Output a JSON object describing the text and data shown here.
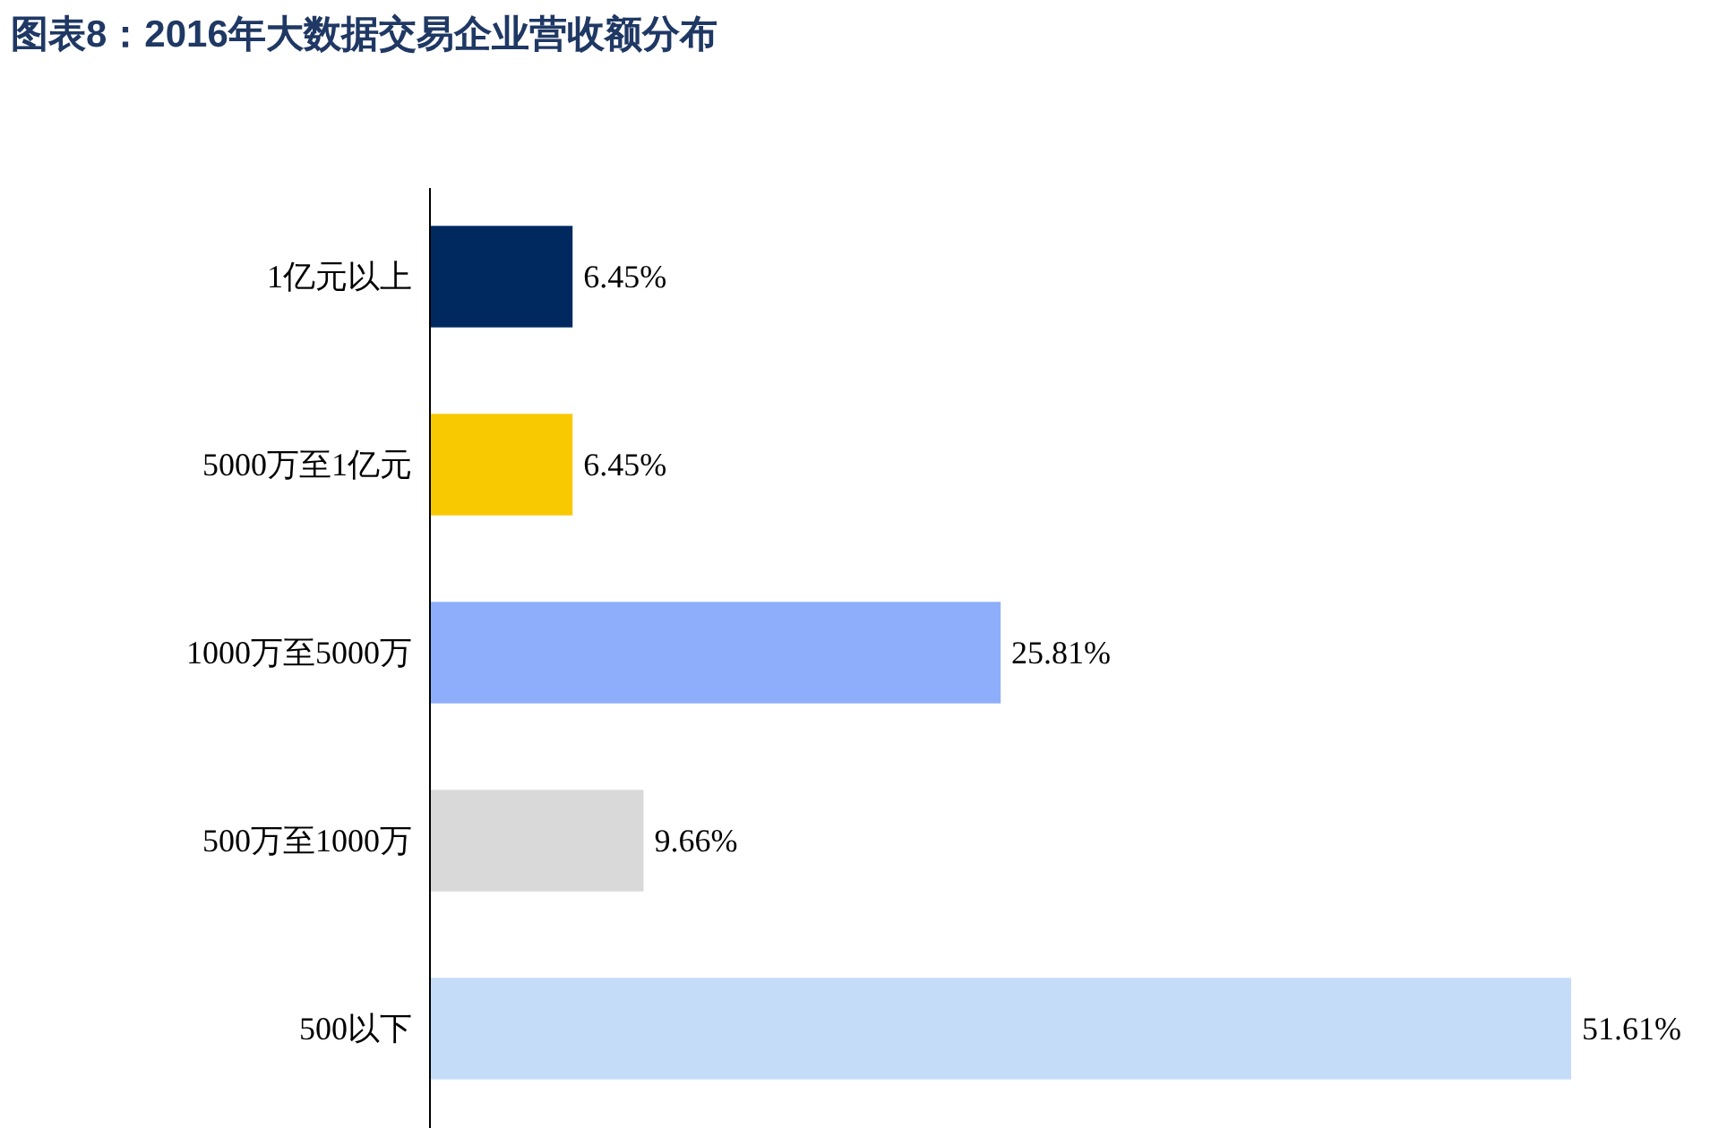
{
  "chart_data": {
    "type": "bar",
    "orientation": "horizontal",
    "title": "图表8：2016年大数据交易企业营收额分布",
    "categories": [
      "1亿元以上",
      "5000万至1亿元",
      "1000万至5000万",
      "500万至1000万",
      "500以下"
    ],
    "values": [
      6.45,
      6.45,
      25.81,
      9.66,
      51.61
    ],
    "colors": [
      "#002960",
      "#f8c800",
      "#8eaefc",
      "#d9d9d9",
      "#c5dcf8"
    ],
    "value_labels": [
      "6.45%",
      "6.45%",
      "25.81%",
      "9.66%",
      "51.61%"
    ]
  }
}
